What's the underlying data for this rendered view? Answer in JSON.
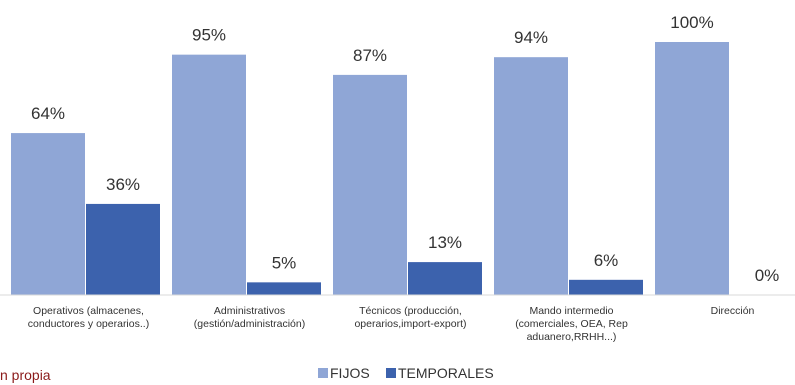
{
  "footer": {
    "source_note": "n propia"
  },
  "colors": {
    "fijos": "#8fa6d6",
    "temporales": "#3c62ad",
    "text": "#333333",
    "axis": "#d9d9d9"
  },
  "chart_data": {
    "type": "bar",
    "categories": [
      [
        "Operativos (almacenes,",
        "conductores y operarios..)"
      ],
      [
        "Administrativos",
        "(gestión/administración)"
      ],
      [
        "Técnicos (producción,",
        "operarios,import-export)"
      ],
      [
        "Mando intermedio",
        "(comerciales, OEA, Rep",
        "aduanero,RRHH...)"
      ],
      [
        "Dirección"
      ]
    ],
    "series": [
      {
        "name": "FIJOS",
        "values": [
          64,
          95,
          87,
          94,
          100
        ],
        "labels": [
          "64%",
          "95%",
          "87%",
          "94%",
          "100%"
        ]
      },
      {
        "name": "TEMPORALES",
        "values": [
          36,
          5,
          13,
          6,
          0
        ],
        "labels": [
          "36%",
          "5%",
          "13%",
          "6%",
          "0%"
        ]
      }
    ],
    "ylim": [
      0,
      100
    ],
    "grid": false,
    "legend_position": "bottom"
  }
}
